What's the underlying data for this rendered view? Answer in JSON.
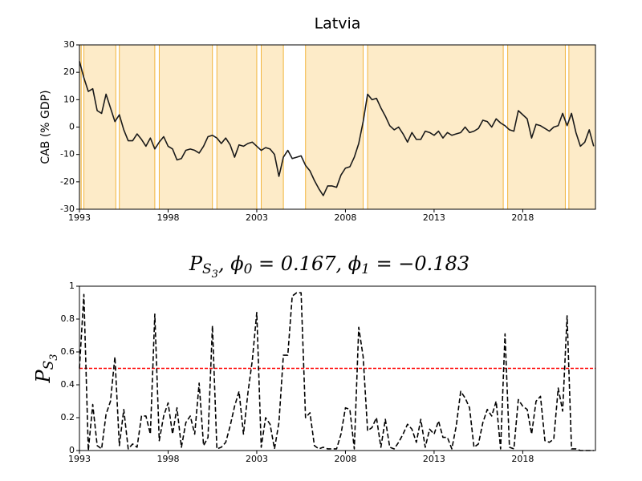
{
  "chart_data": [
    {
      "type": "line",
      "title": "Latvia",
      "ylabel": "CAB (% GDP)",
      "x": [
        1993,
        1993.25,
        1993.5,
        1993.75,
        1994,
        1994.25,
        1994.5,
        1994.75,
        1995,
        1995.25,
        1995.5,
        1995.75,
        1996,
        1996.25,
        1996.5,
        1996.75,
        1997,
        1997.25,
        1997.5,
        1997.75,
        1998,
        1998.25,
        1998.5,
        1998.75,
        1999,
        1999.25,
        1999.5,
        1999.75,
        2000,
        2000.25,
        2000.5,
        2000.75,
        2001,
        2001.25,
        2001.5,
        2001.75,
        2002,
        2002.25,
        2002.5,
        2002.75,
        2003,
        2003.25,
        2003.5,
        2003.75,
        2004,
        2004.25,
        2004.5,
        2004.75,
        2005,
        2005.25,
        2005.5,
        2005.75,
        2006,
        2006.25,
        2006.5,
        2006.75,
        2007,
        2007.25,
        2007.5,
        2007.75,
        2008,
        2008.25,
        2008.5,
        2008.75,
        2009,
        2009.25,
        2009.5,
        2009.75,
        2010,
        2010.25,
        2010.5,
        2010.75,
        2011,
        2011.25,
        2011.5,
        2011.75,
        2012,
        2012.25,
        2012.5,
        2012.75,
        2013,
        2013.25,
        2013.5,
        2013.75,
        2014,
        2014.25,
        2014.5,
        2014.75,
        2015,
        2015.25,
        2015.5,
        2015.75,
        2016,
        2016.25,
        2016.5,
        2016.75,
        2017,
        2017.25,
        2017.5,
        2017.75,
        2018,
        2018.25,
        2018.5,
        2018.75,
        2019,
        2019.25,
        2019.5,
        2019.75,
        2020,
        2020.25,
        2020.5,
        2020.75,
        2021,
        2021.25,
        2021.5,
        2021.75,
        2022
      ],
      "values": [
        24,
        18,
        13,
        14,
        6,
        5,
        12,
        7,
        2,
        4.5,
        -1,
        -5,
        -5,
        -2.5,
        -4.5,
        -7,
        -4,
        -8,
        -5.5,
        -3.5,
        -7,
        -8,
        -12,
        -11.5,
        -8.5,
        -8,
        -8.5,
        -9.5,
        -7,
        -3.5,
        -3,
        -4,
        -6,
        -4,
        -6.5,
        -11,
        -6.5,
        -7,
        -6,
        -5.5,
        -7,
        -8.5,
        -7.5,
        -8,
        -10,
        -18,
        -11,
        -8.5,
        -11.5,
        -11,
        -10.5,
        -14,
        -16,
        -19.5,
        -22.5,
        -25,
        -21.5,
        -21.5,
        -22,
        -17.5,
        -15,
        -14.5,
        -11,
        -6,
        2,
        12,
        10,
        10.5,
        7,
        4,
        0.5,
        -1,
        0,
        -2.5,
        -5.5,
        -2,
        -4.5,
        -4.5,
        -1.5,
        -2,
        -3,
        -1.5,
        -4,
        -2,
        -3,
        -2.5,
        -2,
        0,
        -2,
        -1.5,
        -0.5,
        2.5,
        2,
        0,
        3,
        1.5,
        0.5,
        -1,
        -1.5,
        6,
        4.5,
        3,
        -4,
        1,
        0.5,
        -0.5,
        -1.5,
        0,
        0.5,
        5,
        0.5,
        5,
        -2,
        -7,
        -5.5,
        -1,
        -7
      ],
      "color": "#1a1a1a",
      "line_style": "solid",
      "xlim": [
        1993,
        2022.1
      ],
      "xticks": [
        1993,
        1998,
        2003,
        2008,
        2013,
        2018
      ],
      "ylim": [
        -30,
        30
      ],
      "yticks": [
        -30,
        -20,
        -10,
        0,
        10,
        20,
        30
      ],
      "shaded_spans": [
        [
          1993,
          1993.1
        ],
        [
          1993.25,
          1995.05
        ],
        [
          1995.25,
          1997.25
        ],
        [
          1997.5,
          2000.5
        ],
        [
          2000.75,
          2003
        ],
        [
          2003.25,
          2004.5
        ],
        [
          2005.75,
          2009
        ],
        [
          2009.25,
          2016.9
        ],
        [
          2017.15,
          2020.4
        ],
        [
          2020.6,
          2022.1
        ]
      ],
      "span_color": "#fdebc8",
      "span_edge_color": "#f2b43c"
    },
    {
      "type": "line",
      "title": [
        {
          "text": "P"
        },
        {
          "text": "S",
          "sub": 1
        },
        {
          "text": "3",
          "sub": 2
        },
        {
          "text": ", ϕ"
        },
        {
          "text": "0",
          "sub": 1
        },
        {
          "text": " = 0.167, ϕ"
        },
        {
          "text": "1",
          "sub": 1
        },
        {
          "text": " = −0.183"
        }
      ],
      "ylabel": [
        {
          "text": "P"
        },
        {
          "text": "S",
          "sub": 1
        },
        {
          "text": "3",
          "sub": 2
        }
      ],
      "x": [
        1993,
        1993.25,
        1993.5,
        1993.75,
        1994,
        1994.25,
        1994.5,
        1994.75,
        1995,
        1995.25,
        1995.5,
        1995.75,
        1996,
        1996.25,
        1996.5,
        1996.75,
        1997,
        1997.25,
        1997.5,
        1997.75,
        1998,
        1998.25,
        1998.5,
        1998.75,
        1999,
        1999.25,
        1999.5,
        1999.75,
        2000,
        2000.25,
        2000.5,
        2000.75,
        2001,
        2001.25,
        2001.5,
        2001.75,
        2002,
        2002.25,
        2002.5,
        2002.75,
        2003,
        2003.25,
        2003.5,
        2003.75,
        2004,
        2004.25,
        2004.5,
        2004.75,
        2005,
        2005.25,
        2005.5,
        2005.75,
        2006,
        2006.25,
        2006.5,
        2006.75,
        2007,
        2007.25,
        2007.5,
        2007.75,
        2008,
        2008.25,
        2008.5,
        2008.75,
        2009,
        2009.25,
        2009.5,
        2009.75,
        2010,
        2010.25,
        2010.5,
        2010.75,
        2011,
        2011.25,
        2011.5,
        2011.75,
        2012,
        2012.25,
        2012.5,
        2012.75,
        2013,
        2013.25,
        2013.5,
        2013.75,
        2014,
        2014.25,
        2014.5,
        2014.75,
        2015,
        2015.25,
        2015.5,
        2015.75,
        2016,
        2016.25,
        2016.5,
        2016.75,
        2017,
        2017.25,
        2017.5,
        2017.75,
        2018,
        2018.25,
        2018.5,
        2018.75,
        2019,
        2019.25,
        2019.5,
        2019.75,
        2020,
        2020.25,
        2020.5,
        2020.75,
        2021,
        2021.25,
        2021.5,
        2021.75,
        2022
      ],
      "values": [
        0.5,
        0.95,
        0,
        0.28,
        0.03,
        0.01,
        0.22,
        0.3,
        0.57,
        0.03,
        0.25,
        0.01,
        0.04,
        0.02,
        0.21,
        0.21,
        0.1,
        0.83,
        0.06,
        0.21,
        0.29,
        0.1,
        0.26,
        0.02,
        0.17,
        0.21,
        0.1,
        0.41,
        0.03,
        0.08,
        0.76,
        0.01,
        0.02,
        0.05,
        0.15,
        0.27,
        0.36,
        0.1,
        0.35,
        0.55,
        0.84,
        0.02,
        0.2,
        0.16,
        0.01,
        0.17,
        0.58,
        0.58,
        0.94,
        0.96,
        0.96,
        0.2,
        0.23,
        0.03,
        0.01,
        0.02,
        0.01,
        0.01,
        0.01,
        0.1,
        0.26,
        0.25,
        0.01,
        0.75,
        0.57,
        0.12,
        0.14,
        0.2,
        0.02,
        0.19,
        0.02,
        0.01,
        0.05,
        0.1,
        0.16,
        0.13,
        0.05,
        0.19,
        0.02,
        0.13,
        0.1,
        0.18,
        0.08,
        0.08,
        0.01,
        0.15,
        0.36,
        0.32,
        0.26,
        0.02,
        0.04,
        0.17,
        0.25,
        0.21,
        0.3,
        0.01,
        0.71,
        0.02,
        0.01,
        0.31,
        0.27,
        0.25,
        0.1,
        0.3,
        0.33,
        0.06,
        0.05,
        0.07,
        0.38,
        0.24,
        0.82,
        0.01,
        0.01,
        0,
        0,
        0,
        0
      ],
      "color": "#000000",
      "line_style": "dashed",
      "threshold": 0.5,
      "threshold_color": "#ff0000",
      "xlim": [
        1993,
        2022.1
      ],
      "xticks": [
        1993,
        1998,
        2003,
        2008,
        2013,
        2018
      ],
      "ylim": [
        0,
        1
      ],
      "yticks": [
        0,
        0.2,
        0.4,
        0.6,
        0.8,
        1
      ]
    }
  ]
}
